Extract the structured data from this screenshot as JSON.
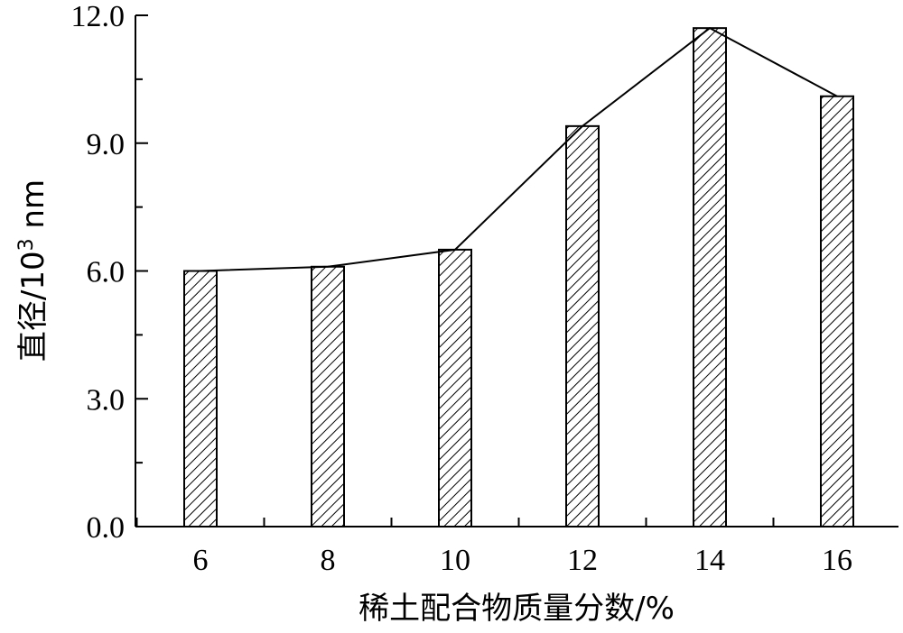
{
  "chart_data": {
    "type": "bar",
    "categories": [
      "6",
      "8",
      "10",
      "12",
      "14",
      "16"
    ],
    "values": [
      6.0,
      6.1,
      6.5,
      9.4,
      11.7,
      10.1
    ],
    "overlay_line": true,
    "xlabel": "稀土配合物质量分数/%",
    "ylabel_prefix": "直径/10",
    "ylabel_exp": "3",
    "ylabel_suffix": " nm",
    "ylim": [
      0,
      12
    ],
    "yticks": [
      "0.0",
      "3.0",
      "6.0",
      "9.0",
      "12.0"
    ],
    "grid": false,
    "bar_pattern": "diagonal-hatch",
    "colors": {
      "axis": "#000000",
      "bar_fill": "#ffffff",
      "hatch": "#000000",
      "line": "#000000"
    }
  }
}
